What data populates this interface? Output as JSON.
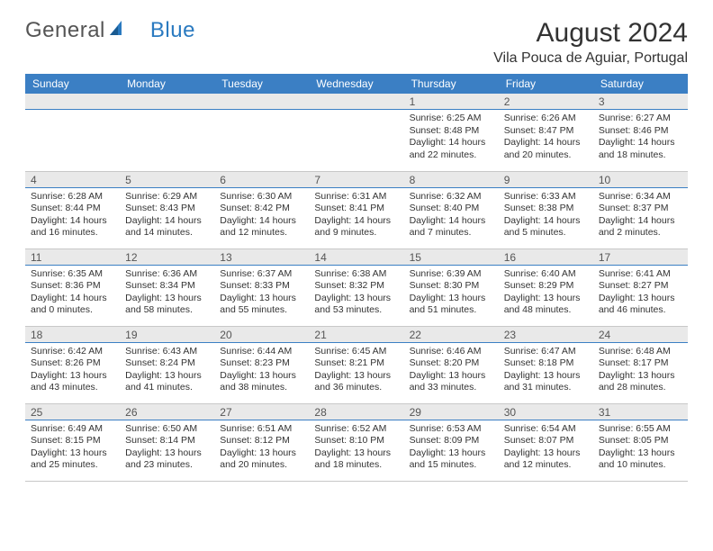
{
  "logo": {
    "text_a": "General",
    "text_b": "Blue"
  },
  "title": "August 2024",
  "location": "Vila Pouca de Aguiar, Portugal",
  "colors": {
    "header_bg": "#3b7fc4",
    "header_text": "#ffffff",
    "day_row_bg": "#e9e9e9",
    "day_row_border": "#3b7fc4",
    "cell_border": "#c8c8c8",
    "logo_gray": "#555555",
    "logo_blue": "#2a7ac0"
  },
  "typography": {
    "title_fontsize": 30,
    "location_fontsize": 16,
    "header_fontsize": 12,
    "daynum_fontsize": 12,
    "body_fontsize": 10.5
  },
  "day_headers": [
    "Sunday",
    "Monday",
    "Tuesday",
    "Wednesday",
    "Thursday",
    "Friday",
    "Saturday"
  ],
  "weeks": [
    [
      null,
      null,
      null,
      null,
      {
        "n": "1",
        "sunrise": "Sunrise: 6:25 AM",
        "sunset": "Sunset: 8:48 PM",
        "daylight": "Daylight: 14 hours and 22 minutes."
      },
      {
        "n": "2",
        "sunrise": "Sunrise: 6:26 AM",
        "sunset": "Sunset: 8:47 PM",
        "daylight": "Daylight: 14 hours and 20 minutes."
      },
      {
        "n": "3",
        "sunrise": "Sunrise: 6:27 AM",
        "sunset": "Sunset: 8:46 PM",
        "daylight": "Daylight: 14 hours and 18 minutes."
      }
    ],
    [
      {
        "n": "4",
        "sunrise": "Sunrise: 6:28 AM",
        "sunset": "Sunset: 8:44 PM",
        "daylight": "Daylight: 14 hours and 16 minutes."
      },
      {
        "n": "5",
        "sunrise": "Sunrise: 6:29 AM",
        "sunset": "Sunset: 8:43 PM",
        "daylight": "Daylight: 14 hours and 14 minutes."
      },
      {
        "n": "6",
        "sunrise": "Sunrise: 6:30 AM",
        "sunset": "Sunset: 8:42 PM",
        "daylight": "Daylight: 14 hours and 12 minutes."
      },
      {
        "n": "7",
        "sunrise": "Sunrise: 6:31 AM",
        "sunset": "Sunset: 8:41 PM",
        "daylight": "Daylight: 14 hours and 9 minutes."
      },
      {
        "n": "8",
        "sunrise": "Sunrise: 6:32 AM",
        "sunset": "Sunset: 8:40 PM",
        "daylight": "Daylight: 14 hours and 7 minutes."
      },
      {
        "n": "9",
        "sunrise": "Sunrise: 6:33 AM",
        "sunset": "Sunset: 8:38 PM",
        "daylight": "Daylight: 14 hours and 5 minutes."
      },
      {
        "n": "10",
        "sunrise": "Sunrise: 6:34 AM",
        "sunset": "Sunset: 8:37 PM",
        "daylight": "Daylight: 14 hours and 2 minutes."
      }
    ],
    [
      {
        "n": "11",
        "sunrise": "Sunrise: 6:35 AM",
        "sunset": "Sunset: 8:36 PM",
        "daylight": "Daylight: 14 hours and 0 minutes."
      },
      {
        "n": "12",
        "sunrise": "Sunrise: 6:36 AM",
        "sunset": "Sunset: 8:34 PM",
        "daylight": "Daylight: 13 hours and 58 minutes."
      },
      {
        "n": "13",
        "sunrise": "Sunrise: 6:37 AM",
        "sunset": "Sunset: 8:33 PM",
        "daylight": "Daylight: 13 hours and 55 minutes."
      },
      {
        "n": "14",
        "sunrise": "Sunrise: 6:38 AM",
        "sunset": "Sunset: 8:32 PM",
        "daylight": "Daylight: 13 hours and 53 minutes."
      },
      {
        "n": "15",
        "sunrise": "Sunrise: 6:39 AM",
        "sunset": "Sunset: 8:30 PM",
        "daylight": "Daylight: 13 hours and 51 minutes."
      },
      {
        "n": "16",
        "sunrise": "Sunrise: 6:40 AM",
        "sunset": "Sunset: 8:29 PM",
        "daylight": "Daylight: 13 hours and 48 minutes."
      },
      {
        "n": "17",
        "sunrise": "Sunrise: 6:41 AM",
        "sunset": "Sunset: 8:27 PM",
        "daylight": "Daylight: 13 hours and 46 minutes."
      }
    ],
    [
      {
        "n": "18",
        "sunrise": "Sunrise: 6:42 AM",
        "sunset": "Sunset: 8:26 PM",
        "daylight": "Daylight: 13 hours and 43 minutes."
      },
      {
        "n": "19",
        "sunrise": "Sunrise: 6:43 AM",
        "sunset": "Sunset: 8:24 PM",
        "daylight": "Daylight: 13 hours and 41 minutes."
      },
      {
        "n": "20",
        "sunrise": "Sunrise: 6:44 AM",
        "sunset": "Sunset: 8:23 PM",
        "daylight": "Daylight: 13 hours and 38 minutes."
      },
      {
        "n": "21",
        "sunrise": "Sunrise: 6:45 AM",
        "sunset": "Sunset: 8:21 PM",
        "daylight": "Daylight: 13 hours and 36 minutes."
      },
      {
        "n": "22",
        "sunrise": "Sunrise: 6:46 AM",
        "sunset": "Sunset: 8:20 PM",
        "daylight": "Daylight: 13 hours and 33 minutes."
      },
      {
        "n": "23",
        "sunrise": "Sunrise: 6:47 AM",
        "sunset": "Sunset: 8:18 PM",
        "daylight": "Daylight: 13 hours and 31 minutes."
      },
      {
        "n": "24",
        "sunrise": "Sunrise: 6:48 AM",
        "sunset": "Sunset: 8:17 PM",
        "daylight": "Daylight: 13 hours and 28 minutes."
      }
    ],
    [
      {
        "n": "25",
        "sunrise": "Sunrise: 6:49 AM",
        "sunset": "Sunset: 8:15 PM",
        "daylight": "Daylight: 13 hours and 25 minutes."
      },
      {
        "n": "26",
        "sunrise": "Sunrise: 6:50 AM",
        "sunset": "Sunset: 8:14 PM",
        "daylight": "Daylight: 13 hours and 23 minutes."
      },
      {
        "n": "27",
        "sunrise": "Sunrise: 6:51 AM",
        "sunset": "Sunset: 8:12 PM",
        "daylight": "Daylight: 13 hours and 20 minutes."
      },
      {
        "n": "28",
        "sunrise": "Sunrise: 6:52 AM",
        "sunset": "Sunset: 8:10 PM",
        "daylight": "Daylight: 13 hours and 18 minutes."
      },
      {
        "n": "29",
        "sunrise": "Sunrise: 6:53 AM",
        "sunset": "Sunset: 8:09 PM",
        "daylight": "Daylight: 13 hours and 15 minutes."
      },
      {
        "n": "30",
        "sunrise": "Sunrise: 6:54 AM",
        "sunset": "Sunset: 8:07 PM",
        "daylight": "Daylight: 13 hours and 12 minutes."
      },
      {
        "n": "31",
        "sunrise": "Sunrise: 6:55 AM",
        "sunset": "Sunset: 8:05 PM",
        "daylight": "Daylight: 13 hours and 10 minutes."
      }
    ]
  ]
}
